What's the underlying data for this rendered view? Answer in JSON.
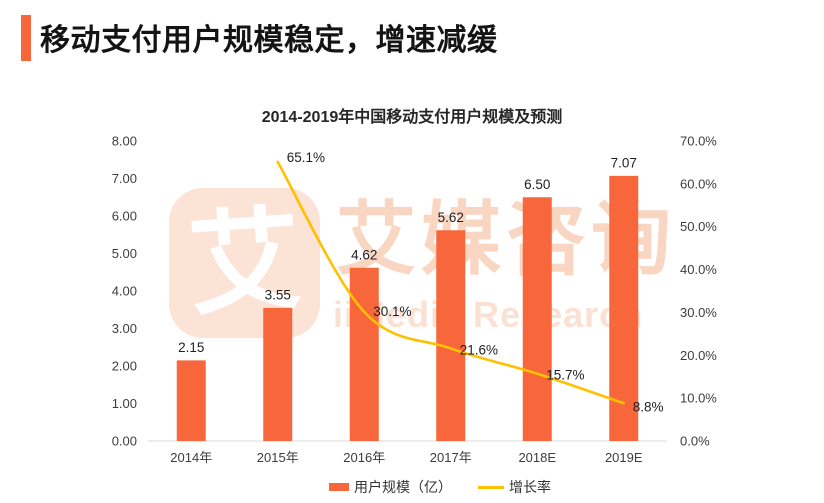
{
  "header": {
    "title": "移动支付用户规模稳定，增速减缓"
  },
  "watermark": {
    "logo_char": "艾",
    "cn": "艾媒咨询",
    "en": "iiMedia Research"
  },
  "chart_data": {
    "type": "bar",
    "subtype": "bar-with-line-combo",
    "title": "2014-2019年中国移动支付用户规模及预测",
    "categories": [
      "2014年",
      "2015年",
      "2016年",
      "2017年",
      "2018E",
      "2019E"
    ],
    "series": [
      {
        "name": "用户规模（亿）",
        "type": "bar",
        "axis": "left",
        "color": "#F8673C",
        "values": [
          2.15,
          3.55,
          4.62,
          5.62,
          6.5,
          7.07
        ],
        "labels": [
          "2.15",
          "3.55",
          "4.62",
          "5.62",
          "6.50",
          "7.07"
        ]
      },
      {
        "name": "增长率",
        "type": "line",
        "axis": "right",
        "color": "#FFC000",
        "values": [
          null,
          65.1,
          30.1,
          21.6,
          15.7,
          8.8
        ],
        "labels": [
          null,
          "65.1%",
          "30.1%",
          "21.6%",
          "15.7%",
          "8.8%"
        ]
      }
    ],
    "left_axis": {
      "min": 0,
      "max": 8,
      "step": 1,
      "tick_labels": [
        "0.00",
        "1.00",
        "2.00",
        "3.00",
        "4.00",
        "5.00",
        "6.00",
        "7.00",
        "8.00"
      ]
    },
    "right_axis": {
      "min": 0,
      "max": 70,
      "step": 10,
      "tick_labels": [
        "0.0%",
        "10.0%",
        "20.0%",
        "30.0%",
        "40.0%",
        "50.0%",
        "60.0%",
        "70.0%"
      ]
    },
    "grid": false,
    "legend_position": "bottom"
  }
}
